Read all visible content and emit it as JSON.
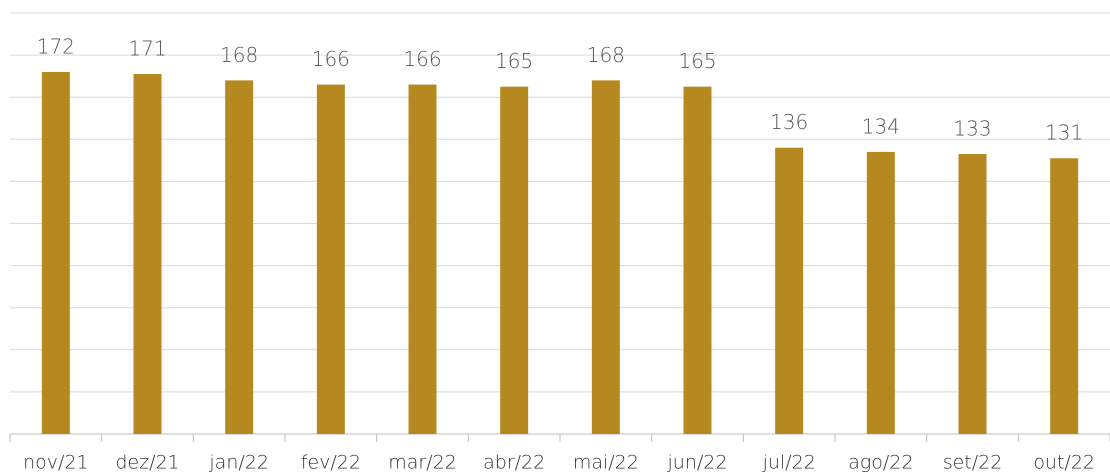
{
  "chart_data": {
    "type": "bar",
    "categories": [
      "nov/21",
      "dez/21",
      "jan/22",
      "fev/22",
      "mar/22",
      "abr/22",
      "mai/22",
      "jun/22",
      "jul/22",
      "ago/22",
      "set/22",
      "out/22"
    ],
    "values": [
      172,
      171,
      168,
      166,
      166,
      165,
      168,
      165,
      136,
      134,
      133,
      131
    ],
    "color": "#b5891f",
    "ylim": [
      0,
      200
    ],
    "yticks": [
      0,
      20,
      40,
      60,
      80,
      100,
      120,
      140,
      160,
      180,
      200
    ],
    "grid": true
  }
}
